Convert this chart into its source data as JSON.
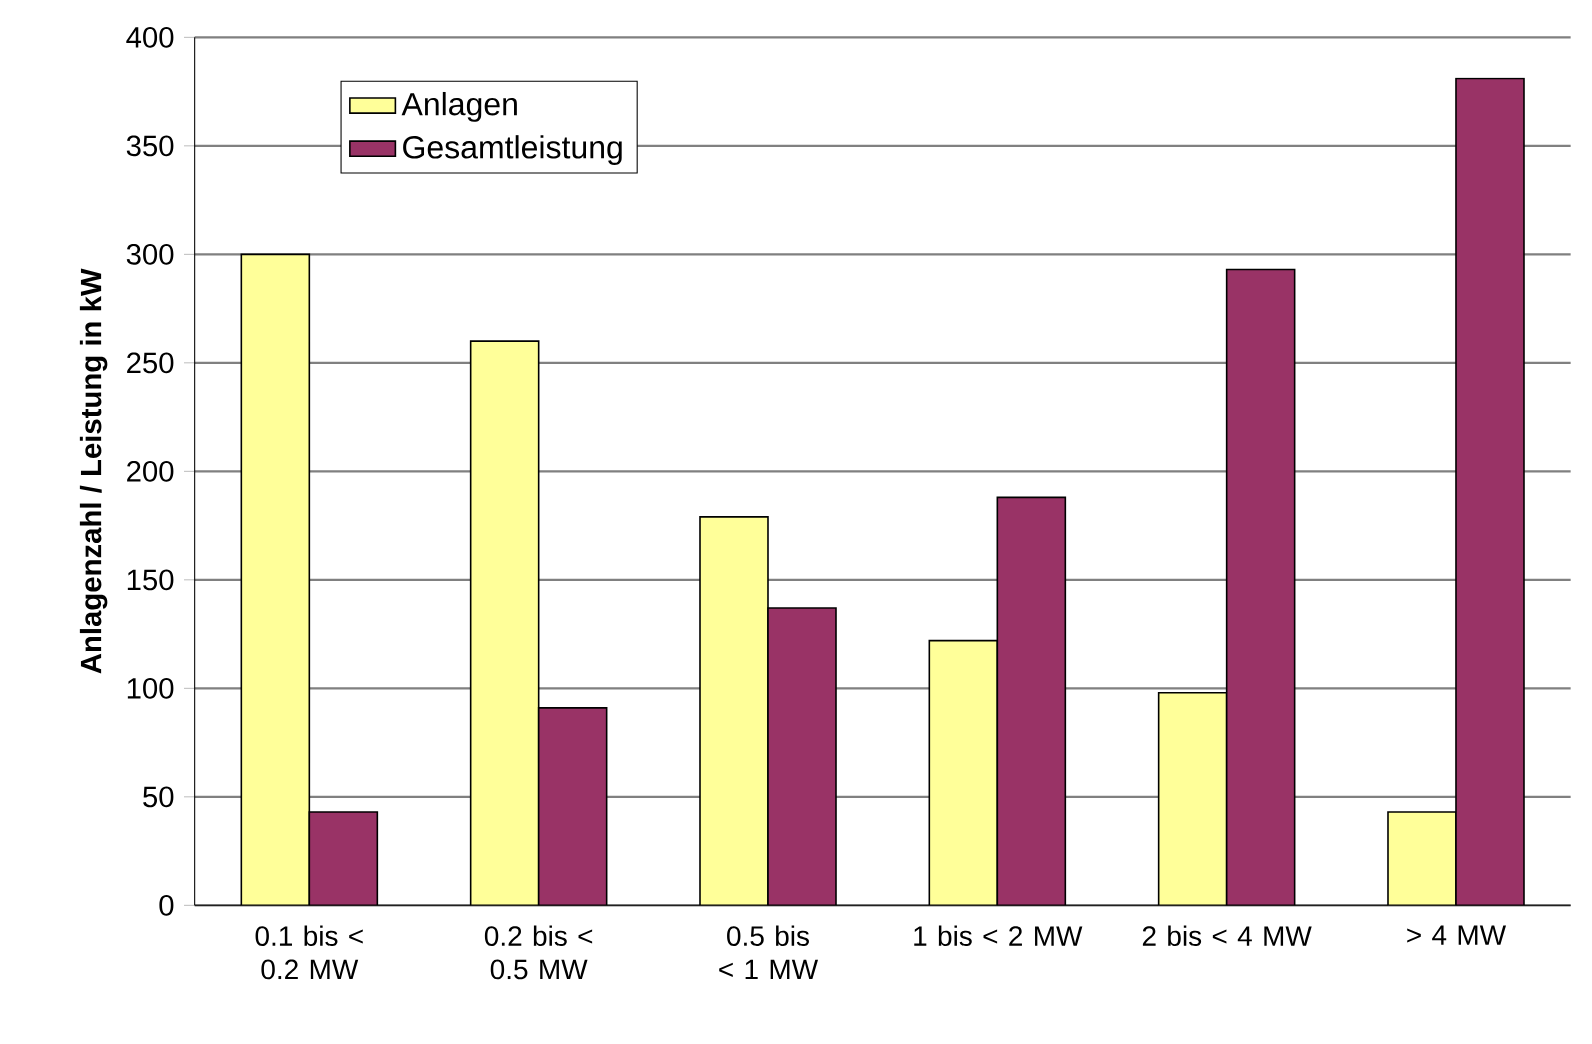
{
  "chart_data": {
    "type": "bar",
    "ylabel": "Anlagenzahl  /  Leistung in kW",
    "categories": [
      "0.1 bis < 0.2 MW",
      "0.2 bis < 0.5 MW",
      "0.5 bis < 1 MW",
      "1 bis < 2 MW",
      "2 bis < 4 MW",
      "> 4 MW"
    ],
    "series": [
      {
        "name": "Anlagen",
        "color": "#ffff99",
        "values": [
          300,
          260,
          179,
          122,
          98,
          43
        ]
      },
      {
        "name": "Gesamtleistung",
        "color": "#993366",
        "values": [
          43,
          91,
          137,
          188,
          293,
          381
        ]
      }
    ],
    "ylim": [
      0,
      400
    ],
    "yticks": [
      0,
      50,
      100,
      150,
      200,
      250,
      300,
      350,
      400
    ],
    "grid": "y",
    "legend": "top left"
  }
}
